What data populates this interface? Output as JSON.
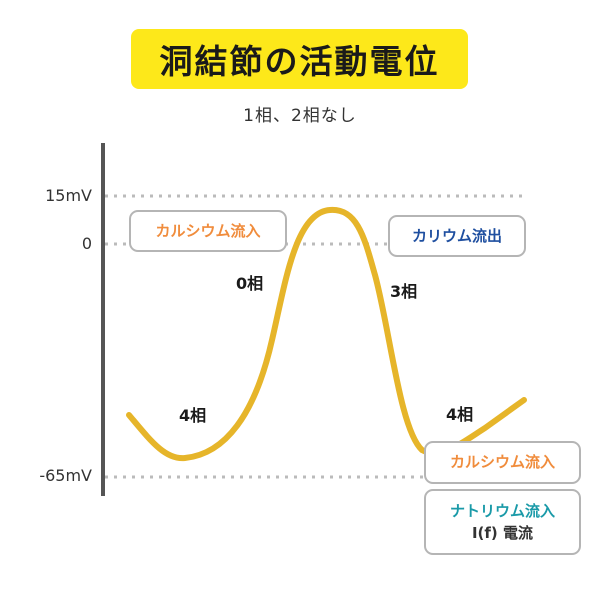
{
  "title": "洞結節の活動電位",
  "subtitle": "1相、2相なし",
  "y_axis_labels": {
    "top": "15mV",
    "zero": "0",
    "bottom": "-65mV"
  },
  "phases": {
    "phase0": "0相",
    "phase3": "3相",
    "phase4_left": "4相",
    "phase4_right": "4相"
  },
  "boxes": {
    "calcium_influx_top": "カルシウム流入",
    "potassium_efflux": "カリウム流出",
    "calcium_influx_bottom": "カルシウム流入",
    "sodium_influx": "ナトリウム流入",
    "if_current": "I(f) 電流"
  },
  "colors": {
    "title_bg": "#fde81a",
    "curve": "#e6b52a",
    "calcium_text": "#f08c3c",
    "potassium_text": "#1f4fa0",
    "sodium_text": "#1a9aa8",
    "axis": "#555555",
    "dotted_line": "#bbbbbb",
    "box_border": "#b5b5b5"
  }
}
